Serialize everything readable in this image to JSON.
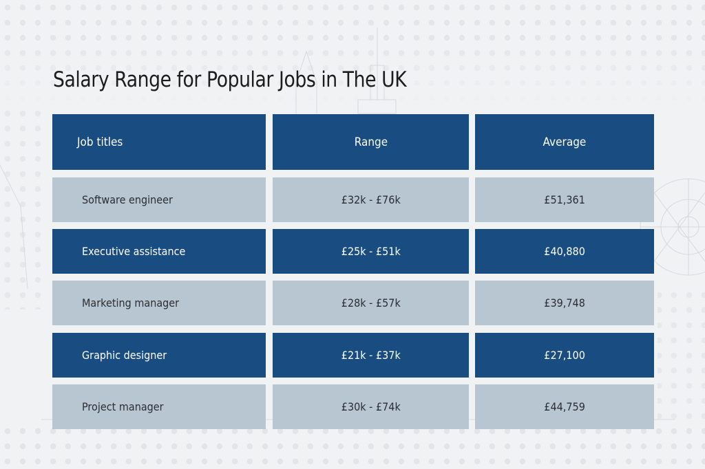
{
  "chart_data": {
    "type": "table",
    "title": "Salary Range for Popular Jobs in The UK",
    "columns": [
      "Job titles",
      "Range",
      "Average"
    ],
    "rows": [
      {
        "job": "Software engineer",
        "range": "£32k - £76k",
        "average": "£51,361"
      },
      {
        "job": "Executive assistance",
        "range": "£25k - £51k",
        "average": "£40,880"
      },
      {
        "job": "Marketing manager",
        "range": "£28k - £57k",
        "average": "£39,748"
      },
      {
        "job": "Graphic designer",
        "range": "£21k - £37k",
        "average": "£27,100"
      },
      {
        "job": "Project manager",
        "range": "£30k - £74k",
        "average": "£44,759"
      }
    ]
  },
  "colors": {
    "header_fill": "#194d81",
    "row_light": "#b8c6d1",
    "row_dark": "#194d81",
    "background": "#f1f2f4",
    "title_text": "#1c1c1c"
  }
}
